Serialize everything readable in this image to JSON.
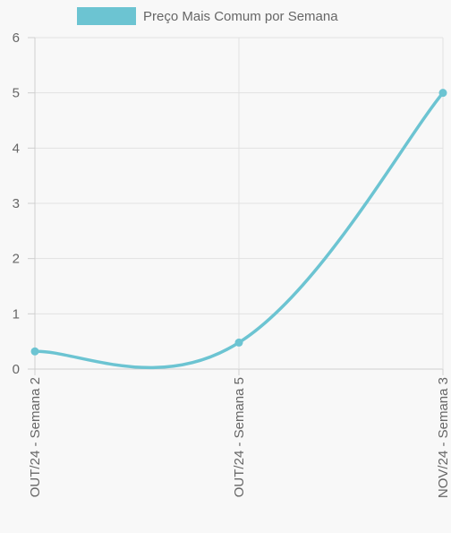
{
  "chart_data": {
    "type": "line",
    "title": "",
    "xlabel": "",
    "ylabel": "",
    "categories": [
      "OUT/24 - Semana 2",
      "OUT/24 - Semana 5",
      "NOV/24 - Semana 3"
    ],
    "series": [
      {
        "name": "Preço Mais Comum por Semana",
        "values": [
          0.32,
          0.48,
          5.0
        ],
        "color": "#6cc4d2"
      }
    ],
    "ylim": [
      0,
      6
    ],
    "yticks": [
      "0",
      "1",
      "2",
      "3",
      "4",
      "5",
      "6"
    ],
    "grid": true,
    "legend": "top",
    "curve": "smooth"
  }
}
